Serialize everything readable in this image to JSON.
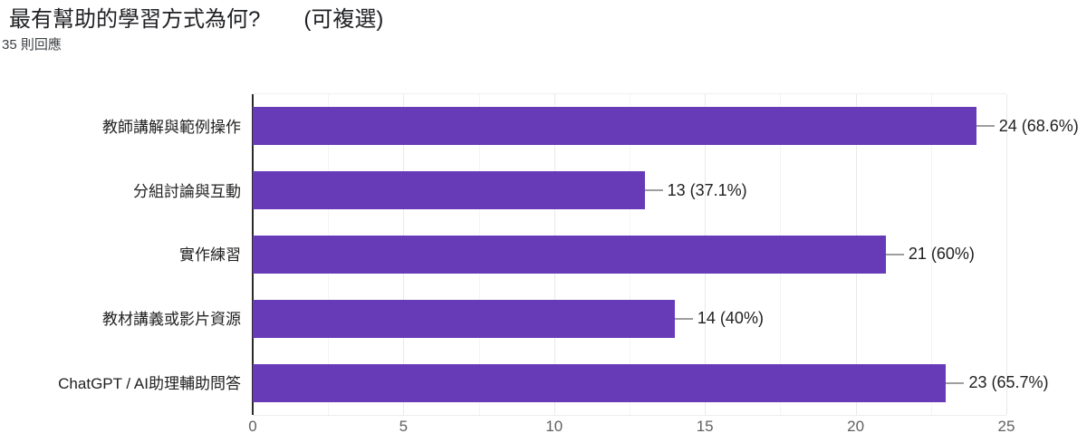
{
  "header": {
    "title": "最有幫助的學習方式為何?　　(可複選)",
    "subtitle": "35 則回應"
  },
  "chart_data": {
    "type": "bar",
    "orientation": "horizontal",
    "title": "最有幫助的學習方式為何?　　(可複選)",
    "subtitle": "35 則回應",
    "categories": [
      "教師講解與範例操作",
      "分組討論與互動",
      "實作練習",
      "教材講義或影片資源",
      "ChatGPT / AI助理輔助問答"
    ],
    "values": [
      24,
      13,
      21,
      14,
      23
    ],
    "value_labels": [
      "24 (68.6%)",
      "13 (37.1%)",
      "21 (60%)",
      "14 (40%)",
      "23 (65.7%)"
    ],
    "total_responses": 35,
    "xlim": [
      0,
      25
    ],
    "x_ticks": [
      0,
      5,
      10,
      15,
      20,
      25
    ],
    "grid_step_minor": 2.5,
    "grid_step_major": 5,
    "legend": "none",
    "bar_color": "#673ab7"
  },
  "colors": {
    "bar": "#673ab7",
    "axis_line": "#2b2b2b",
    "gridline_major": "#e9e9e9",
    "gridline_minor": "#f4f4f4",
    "callout_line": "#9e9e9e",
    "value_text": "#212121",
    "category_text": "#212121",
    "tick_text": "#616161",
    "title_text": "#202124"
  }
}
